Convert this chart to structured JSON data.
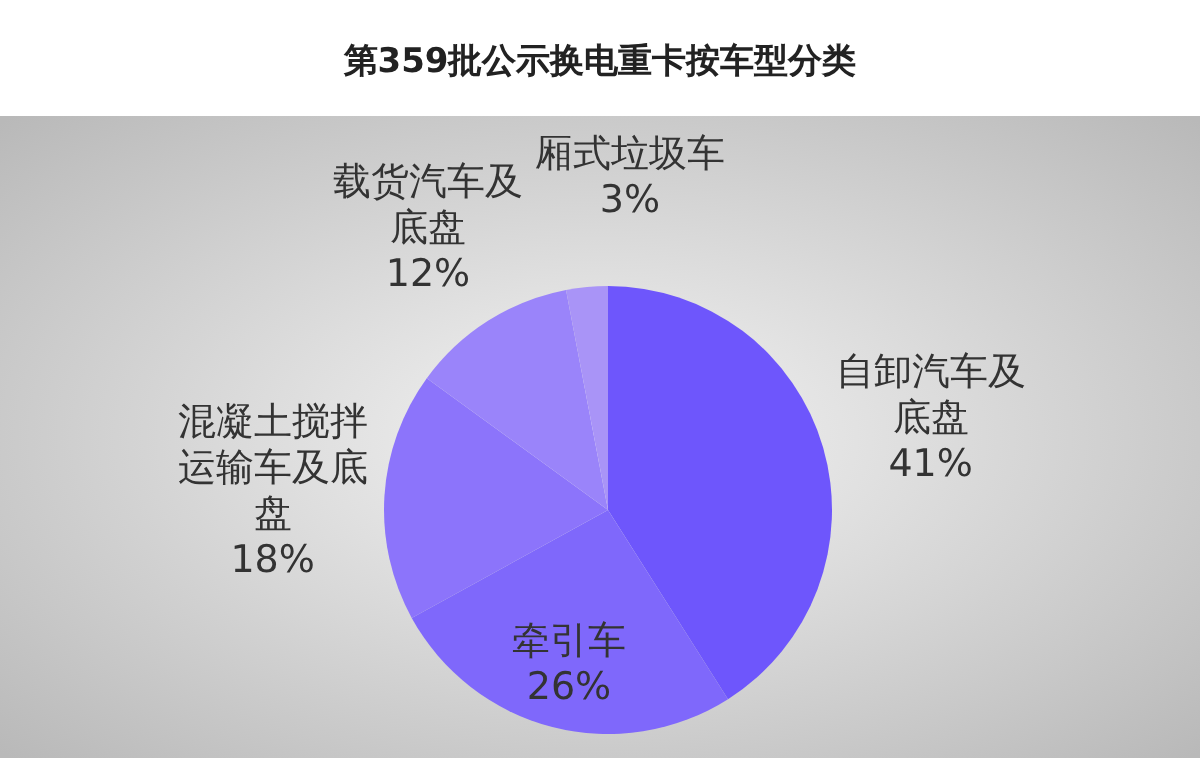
{
  "chart_data": {
    "type": "pie",
    "title": "第359批公示换电重卡按车型分类",
    "categories": [
      "自卸汽车及底盘",
      "牵引车",
      "混凝土搅拌运输车及底盘",
      "载货汽车及底盘",
      "厢式垃圾车"
    ],
    "values": [
      41,
      26,
      18,
      12,
      3
    ],
    "colors": [
      "#6e56fc",
      "#7f68fb",
      "#8c74fb",
      "#9a84fa",
      "#a994f7"
    ],
    "value_labels": [
      "41%",
      "26%",
      "18%",
      "12%",
      "3%"
    ]
  }
}
